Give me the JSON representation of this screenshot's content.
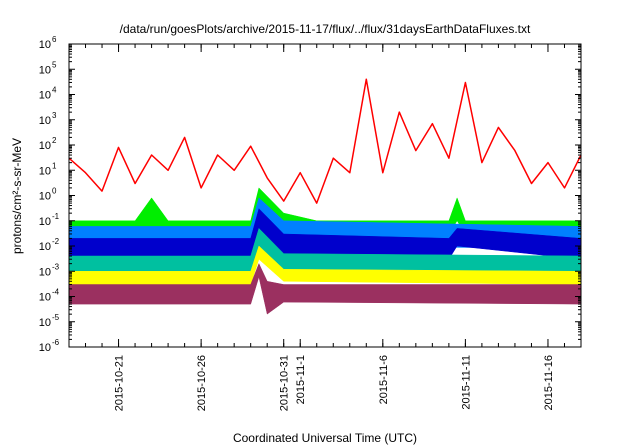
{
  "chart_data": {
    "type": "line",
    "title": "/data/run/goesPlots/archive/2015-11-17/flux/../flux/31daysEarthDataFluxes.txt",
    "xlabel": "Coordinated Universal Time (UTC)",
    "ylabel": "protons/cm²-s-sr-MeV",
    "yscale": "log",
    "ylim": [
      1e-06,
      1000000.0
    ],
    "xlim": [
      "2015-10-18",
      "2015-11-18"
    ],
    "x_ticks": [
      "2015-10-21",
      "2015-10-26",
      "2015-10-31",
      "2015-11-1",
      "2015-11-6",
      "2015-11-11",
      "2015-11-16"
    ],
    "x_tick_dates": [
      "2015-10-21",
      "2015-10-26",
      "2015-10-31",
      "2015-11-01",
      "2015-11-06",
      "2015-11-11",
      "2015-11-16"
    ],
    "y_ticks": [
      {
        "base": "10",
        "exp": "-6"
      },
      {
        "base": "10",
        "exp": "-5"
      },
      {
        "base": "10",
        "exp": "-4"
      },
      {
        "base": "10",
        "exp": "-3"
      },
      {
        "base": "10",
        "exp": "-2"
      },
      {
        "base": "10",
        "exp": "-1"
      },
      {
        "base": "10",
        "exp": "0"
      },
      {
        "base": "10",
        "exp": "1"
      },
      {
        "base": "10",
        "exp": "2"
      },
      {
        "base": "10",
        "exp": "3"
      },
      {
        "base": "10",
        "exp": "4"
      },
      {
        "base": "10",
        "exp": "5"
      },
      {
        "base": "10",
        "exp": "6"
      }
    ],
    "grid": false,
    "series": [
      {
        "color": "#ff0000",
        "kind": "line",
        "points": [
          [
            "2015-10-18",
            30
          ],
          [
            "2015-10-19",
            8
          ],
          [
            "2015-10-20",
            1.5
          ],
          [
            "2015-10-21",
            80
          ],
          [
            "2015-10-22",
            3
          ],
          [
            "2015-10-23",
            40
          ],
          [
            "2015-10-24",
            10
          ],
          [
            "2015-10-25",
            200
          ],
          [
            "2015-10-26",
            2
          ],
          [
            "2015-10-27",
            40
          ],
          [
            "2015-10-28",
            10
          ],
          [
            "2015-10-29",
            90
          ],
          [
            "2015-10-30",
            5
          ],
          [
            "2015-10-31",
            0.6
          ],
          [
            "2015-11-01",
            8
          ],
          [
            "2015-11-02",
            0.5
          ],
          [
            "2015-11-03",
            30
          ],
          [
            "2015-11-04",
            8
          ],
          [
            "2015-11-05",
            40000
          ],
          [
            "2015-11-06",
            8
          ],
          [
            "2015-11-07",
            2000
          ],
          [
            "2015-11-08",
            60
          ],
          [
            "2015-11-09",
            700
          ],
          [
            "2015-11-10",
            30
          ],
          [
            "2015-11-11",
            30000
          ],
          [
            "2015-11-12",
            20
          ],
          [
            "2015-11-13",
            500
          ],
          [
            "2015-11-14",
            60
          ],
          [
            "2015-11-15",
            3
          ],
          [
            "2015-11-16",
            20
          ],
          [
            "2015-11-17",
            2
          ],
          [
            "2015-11-18",
            40
          ]
        ]
      },
      {
        "color": "#00ee00",
        "kind": "band",
        "points": [
          [
            "2015-10-18",
            0.03,
            0.1
          ],
          [
            "2015-10-22",
            0.03,
            0.1
          ],
          [
            "2015-10-23",
            0.05,
            0.8
          ],
          [
            "2015-10-24",
            0.03,
            0.1
          ],
          [
            "2015-10-29",
            0.03,
            0.1
          ],
          [
            "2015-10-29.5",
            0.3,
            2
          ],
          [
            "2015-10-31",
            0.05,
            0.2
          ],
          [
            "2015-11-02",
            0.03,
            0.1
          ],
          [
            "2015-11-10",
            0.03,
            0.1
          ],
          [
            "2015-11-10.5",
            0.1,
            0.8
          ],
          [
            "2015-11-11",
            0.03,
            0.1
          ],
          [
            "2015-11-18",
            0.03,
            0.1
          ]
        ]
      },
      {
        "color": "#0080ff",
        "kind": "band",
        "points": [
          [
            "2015-10-18",
            0.008,
            0.06
          ],
          [
            "2015-10-29",
            0.008,
            0.06
          ],
          [
            "2015-10-29.5",
            0.1,
            0.8
          ],
          [
            "2015-10-31",
            0.01,
            0.1
          ],
          [
            "2015-11-18",
            0.008,
            0.06
          ]
        ]
      },
      {
        "color": "#0000cc",
        "kind": "band",
        "points": [
          [
            "2015-10-18",
            0.003,
            0.02
          ],
          [
            "2015-10-29",
            0.003,
            0.02
          ],
          [
            "2015-10-29.5",
            0.05,
            0.3
          ],
          [
            "2015-10-31",
            0.004,
            0.03
          ],
          [
            "2015-11-10",
            0.003,
            0.02
          ],
          [
            "2015-11-10.5",
            0.01,
            0.05
          ],
          [
            "2015-11-18",
            0.003,
            0.02
          ]
        ]
      },
      {
        "color": "#00c0a0",
        "kind": "band",
        "points": [
          [
            "2015-10-18",
            0.0008,
            0.004
          ],
          [
            "2015-10-29",
            0.0008,
            0.004
          ],
          [
            "2015-10-29.5",
            0.01,
            0.05
          ],
          [
            "2015-10-31",
            0.001,
            0.005
          ],
          [
            "2015-11-18",
            0.0008,
            0.004
          ]
        ]
      },
      {
        "color": "#ffff00",
        "kind": "band",
        "points": [
          [
            "2015-10-18",
            0.0003,
            0.001
          ],
          [
            "2015-10-29",
            0.0003,
            0.001
          ],
          [
            "2015-10-29.5",
            0.003,
            0.01
          ],
          [
            "2015-10-31",
            0.0004,
            0.0012
          ],
          [
            "2015-11-18",
            0.0003,
            0.001
          ]
        ]
      },
      {
        "color": "#9b3060",
        "kind": "band",
        "points": [
          [
            "2015-10-18",
            5e-05,
            0.0003
          ],
          [
            "2015-10-29",
            5e-05,
            0.0003
          ],
          [
            "2015-10-29.5",
            0.0006,
            0.002
          ],
          [
            "2015-10-30",
            2e-05,
            0.0004
          ],
          [
            "2015-10-31",
            6e-05,
            0.0003
          ],
          [
            "2015-11-18",
            5e-05,
            0.0003
          ]
        ]
      }
    ]
  }
}
